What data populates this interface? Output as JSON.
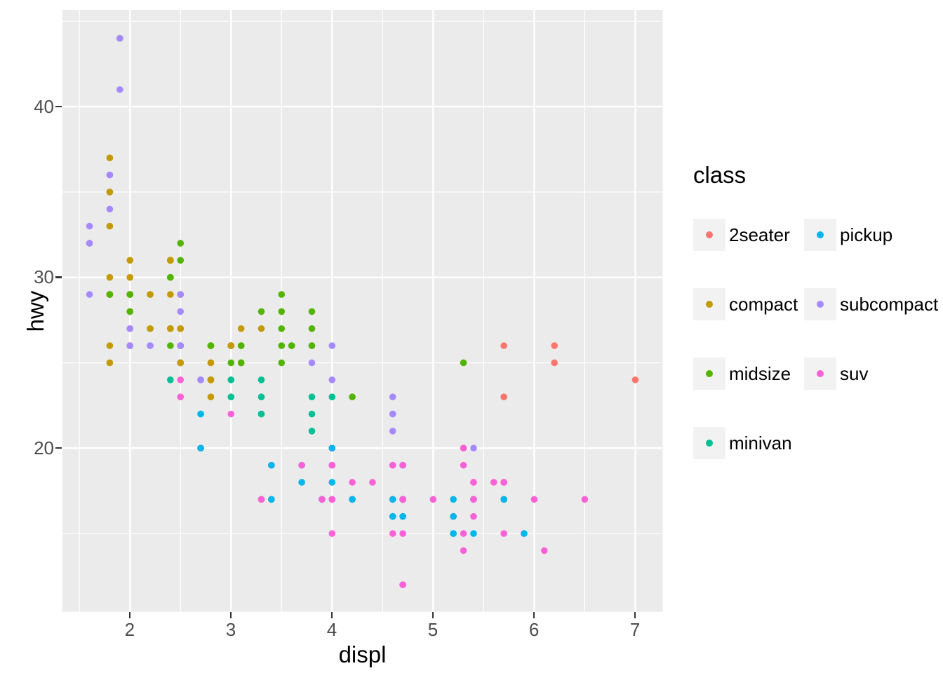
{
  "chart_data": {
    "type": "scatter",
    "title": "",
    "xlabel": "displ",
    "ylabel": "hwy",
    "xlim": [
      1.332,
      7.272
    ],
    "ylim": [
      10.42,
      45.67
    ],
    "x_major_ticks": [
      2,
      3,
      4,
      5,
      6,
      7
    ],
    "x_tick_labels": [
      "2",
      "3",
      "4",
      "5",
      "6",
      "7"
    ],
    "x_minor_ticks": [
      1.5,
      2.5,
      3.5,
      4.5,
      5.5,
      6.5
    ],
    "y_major_ticks": [
      20,
      30,
      40
    ],
    "y_tick_labels": [
      "20",
      "30",
      "40"
    ],
    "y_minor_ticks": [
      15,
      25,
      35,
      45
    ],
    "grid": true,
    "legend": {
      "title": "class",
      "position": "right",
      "ncol": 2
    },
    "series": [
      {
        "name": "2seater",
        "color": "#F8766D"
      },
      {
        "name": "compact",
        "color": "#C49A00"
      },
      {
        "name": "midsize",
        "color": "#53B400"
      },
      {
        "name": "minivan",
        "color": "#00C094"
      },
      {
        "name": "pickup",
        "color": "#00B6EB"
      },
      {
        "name": "subcompact",
        "color": "#A58AFF"
      },
      {
        "name": "suv",
        "color": "#FB61D7"
      }
    ],
    "point_columns": [
      "displ",
      "hwy",
      "series_index"
    ],
    "points": [
      [
        1.8,
        29,
        1
      ],
      [
        1.8,
        29,
        1
      ],
      [
        2.0,
        31,
        1
      ],
      [
        2.0,
        30,
        1
      ],
      [
        2.8,
        26,
        1
      ],
      [
        2.8,
        26,
        1
      ],
      [
        3.1,
        27,
        1
      ],
      [
        1.8,
        26,
        1
      ],
      [
        1.8,
        25,
        1
      ],
      [
        2.0,
        28,
        1
      ],
      [
        2.0,
        27,
        1
      ],
      [
        2.8,
        25,
        1
      ],
      [
        2.8,
        25,
        1
      ],
      [
        3.1,
        25,
        1
      ],
      [
        3.1,
        25,
        1
      ],
      [
        2.8,
        24,
        2
      ],
      [
        3.1,
        25,
        2
      ],
      [
        4.2,
        23,
        2
      ],
      [
        5.3,
        20,
        6
      ],
      [
        5.3,
        15,
        6
      ],
      [
        5.3,
        20,
        6
      ],
      [
        5.7,
        17,
        6
      ],
      [
        6.0,
        17,
        6
      ],
      [
        5.7,
        26,
        0
      ],
      [
        5.7,
        23,
        0
      ],
      [
        6.2,
        26,
        0
      ],
      [
        6.2,
        25,
        0
      ],
      [
        7.0,
        24,
        0
      ],
      [
        5.3,
        19,
        6
      ],
      [
        5.3,
        14,
        6
      ],
      [
        5.7,
        15,
        6
      ],
      [
        6.5,
        17,
        6
      ],
      [
        2.4,
        27,
        2
      ],
      [
        2.4,
        30,
        2
      ],
      [
        3.1,
        26,
        2
      ],
      [
        3.5,
        29,
        2
      ],
      [
        3.6,
        26,
        2
      ],
      [
        2.4,
        24,
        3
      ],
      [
        3.0,
        24,
        3
      ],
      [
        3.3,
        22,
        3
      ],
      [
        3.3,
        22,
        3
      ],
      [
        3.3,
        24,
        3
      ],
      [
        3.8,
        22,
        3
      ],
      [
        3.8,
        21,
        3
      ],
      [
        3.8,
        23,
        3
      ],
      [
        4.0,
        23,
        3
      ],
      [
        3.7,
        19,
        4
      ],
      [
        3.7,
        18,
        4
      ],
      [
        3.9,
        17,
        4
      ],
      [
        3.9,
        17,
        4
      ],
      [
        4.7,
        19,
        4
      ],
      [
        4.7,
        19,
        4
      ],
      [
        5.2,
        17,
        4
      ],
      [
        5.2,
        15,
        4
      ],
      [
        3.9,
        17,
        6
      ],
      [
        4.7,
        17,
        6
      ],
      [
        4.7,
        12,
        6
      ],
      [
        4.7,
        17,
        6
      ],
      [
        5.2,
        16,
        6
      ],
      [
        5.7,
        18,
        6
      ],
      [
        5.9,
        15,
        6
      ],
      [
        4.7,
        16,
        4
      ],
      [
        4.7,
        12,
        4
      ],
      [
        4.7,
        17,
        4
      ],
      [
        4.7,
        17,
        4
      ],
      [
        4.7,
        16,
        4
      ],
      [
        5.2,
        15,
        4
      ],
      [
        5.2,
        16,
        4
      ],
      [
        5.7,
        17,
        4
      ],
      [
        5.9,
        15,
        4
      ],
      [
        4.6,
        17,
        6
      ],
      [
        5.4,
        17,
        6
      ],
      [
        5.4,
        18,
        6
      ],
      [
        4.0,
        17,
        6
      ],
      [
        4.0,
        19,
        6
      ],
      [
        4.0,
        17,
        6
      ],
      [
        4.0,
        19,
        6
      ],
      [
        4.6,
        19,
        6
      ],
      [
        4.2,
        17,
        4
      ],
      [
        4.2,
        17,
        4
      ],
      [
        4.6,
        16,
        4
      ],
      [
        4.6,
        16,
        4
      ],
      [
        4.6,
        17,
        4
      ],
      [
        5.4,
        15,
        4
      ],
      [
        5.4,
        17,
        4
      ],
      [
        3.8,
        26,
        5
      ],
      [
        3.8,
        25,
        5
      ],
      [
        4.0,
        26,
        5
      ],
      [
        4.0,
        24,
        5
      ],
      [
        4.6,
        21,
        5
      ],
      [
        4.6,
        22,
        5
      ],
      [
        4.6,
        23,
        5
      ],
      [
        4.6,
        22,
        5
      ],
      [
        5.4,
        20,
        5
      ],
      [
        1.6,
        33,
        5
      ],
      [
        1.6,
        32,
        5
      ],
      [
        1.6,
        32,
        5
      ],
      [
        1.6,
        29,
        5
      ],
      [
        1.6,
        32,
        5
      ],
      [
        1.8,
        34,
        5
      ],
      [
        1.8,
        36,
        5
      ],
      [
        1.8,
        36,
        5
      ],
      [
        2.0,
        29,
        5
      ],
      [
        2.4,
        26,
        2
      ],
      [
        2.4,
        27,
        2
      ],
      [
        2.4,
        30,
        2
      ],
      [
        2.4,
        31,
        2
      ],
      [
        2.5,
        26,
        2
      ],
      [
        2.5,
        26,
        2
      ],
      [
        3.3,
        28,
        2
      ],
      [
        2.0,
        26,
        5
      ],
      [
        2.0,
        29,
        5
      ],
      [
        2.0,
        28,
        5
      ],
      [
        2.0,
        27,
        5
      ],
      [
        2.7,
        24,
        5
      ],
      [
        2.7,
        24,
        5
      ],
      [
        3.0,
        22,
        6
      ],
      [
        3.7,
        19,
        6
      ],
      [
        4.0,
        20,
        6
      ],
      [
        4.7,
        17,
        6
      ],
      [
        4.7,
        12,
        6
      ],
      [
        4.7,
        19,
        6
      ],
      [
        5.7,
        18,
        6
      ],
      [
        6.1,
        14,
        6
      ],
      [
        4.0,
        15,
        6
      ],
      [
        4.2,
        18,
        6
      ],
      [
        4.4,
        18,
        6
      ],
      [
        4.6,
        15,
        6
      ],
      [
        5.4,
        17,
        6
      ],
      [
        5.4,
        16,
        6
      ],
      [
        5.4,
        18,
        6
      ],
      [
        4.0,
        17,
        6
      ],
      [
        4.0,
        19,
        6
      ],
      [
        4.6,
        19,
        6
      ],
      [
        5.0,
        17,
        6
      ],
      [
        2.4,
        29,
        1
      ],
      [
        2.4,
        27,
        1
      ],
      [
        2.5,
        31,
        2
      ],
      [
        2.5,
        32,
        2
      ],
      [
        3.5,
        27,
        2
      ],
      [
        3.5,
        26,
        2
      ],
      [
        3.0,
        26,
        2
      ],
      [
        3.0,
        25,
        2
      ],
      [
        3.5,
        25,
        2
      ],
      [
        3.3,
        17,
        6
      ],
      [
        3.3,
        17,
        6
      ],
      [
        4.0,
        20,
        6
      ],
      [
        5.6,
        18,
        6
      ],
      [
        3.1,
        26,
        2
      ],
      [
        3.8,
        26,
        2
      ],
      [
        3.8,
        27,
        2
      ],
      [
        3.8,
        28,
        2
      ],
      [
        5.3,
        25,
        2
      ],
      [
        2.5,
        25,
        6
      ],
      [
        2.5,
        24,
        6
      ],
      [
        2.5,
        27,
        6
      ],
      [
        2.5,
        25,
        6
      ],
      [
        2.5,
        26,
        6
      ],
      [
        2.5,
        23,
        6
      ],
      [
        2.2,
        26,
        5
      ],
      [
        2.2,
        26,
        5
      ],
      [
        2.5,
        26,
        5
      ],
      [
        2.5,
        26,
        5
      ],
      [
        2.5,
        25,
        1
      ],
      [
        2.5,
        27,
        1
      ],
      [
        2.5,
        25,
        1
      ],
      [
        2.5,
        27,
        1
      ],
      [
        2.7,
        20,
        6
      ],
      [
        2.7,
        20,
        6
      ],
      [
        3.4,
        19,
        6
      ],
      [
        3.4,
        17,
        6
      ],
      [
        4.0,
        20,
        6
      ],
      [
        4.7,
        17,
        6
      ],
      [
        2.2,
        29,
        2
      ],
      [
        2.2,
        27,
        2
      ],
      [
        2.4,
        31,
        2
      ],
      [
        2.4,
        31,
        2
      ],
      [
        3.0,
        26,
        2
      ],
      [
        3.0,
        26,
        2
      ],
      [
        3.5,
        28,
        2
      ],
      [
        2.2,
        27,
        1
      ],
      [
        2.2,
        29,
        1
      ],
      [
        2.4,
        31,
        1
      ],
      [
        2.4,
        31,
        1
      ],
      [
        3.0,
        26,
        1
      ],
      [
        3.0,
        26,
        1
      ],
      [
        3.3,
        27,
        1
      ],
      [
        1.8,
        30,
        1
      ],
      [
        1.8,
        33,
        1
      ],
      [
        1.8,
        35,
        1
      ],
      [
        1.8,
        37,
        1
      ],
      [
        1.8,
        35,
        1
      ],
      [
        4.7,
        15,
        6
      ],
      [
        5.7,
        18,
        6
      ],
      [
        3.0,
        23,
        3
      ],
      [
        3.3,
        23,
        3
      ],
      [
        2.7,
        22,
        4
      ],
      [
        2.7,
        20,
        4
      ],
      [
        2.7,
        22,
        4
      ],
      [
        3.4,
        17,
        4
      ],
      [
        3.4,
        19,
        4
      ],
      [
        4.0,
        18,
        4
      ],
      [
        4.0,
        20,
        4
      ],
      [
        2.0,
        29,
        1
      ],
      [
        2.0,
        26,
        1
      ],
      [
        2.0,
        29,
        1
      ],
      [
        2.0,
        29,
        1
      ],
      [
        2.8,
        24,
        1
      ],
      [
        1.9,
        44,
        1
      ],
      [
        2.0,
        29,
        1
      ],
      [
        2.0,
        26,
        1
      ],
      [
        2.0,
        29,
        1
      ],
      [
        2.0,
        29,
        1
      ],
      [
        2.5,
        29,
        1
      ],
      [
        2.5,
        29,
        1
      ],
      [
        2.8,
        23,
        1
      ],
      [
        2.8,
        24,
        1
      ],
      [
        1.9,
        44,
        5
      ],
      [
        1.9,
        41,
        5
      ],
      [
        2.0,
        29,
        5
      ],
      [
        2.0,
        26,
        5
      ],
      [
        2.5,
        28,
        5
      ],
      [
        2.5,
        29,
        5
      ],
      [
        1.8,
        29,
        2
      ],
      [
        1.8,
        29,
        2
      ],
      [
        2.0,
        28,
        2
      ],
      [
        2.0,
        29,
        2
      ],
      [
        2.8,
        26,
        2
      ],
      [
        2.8,
        26,
        2
      ],
      [
        3.6,
        26,
        2
      ]
    ],
    "style": {
      "background": "#FFFFFF",
      "panel_bg": "#EBEBEB",
      "grid_major": "#FFFFFF",
      "grid_minor": "#FFFFFF",
      "tick_color": "#333333",
      "tick_label_color": "#4D4D4D",
      "title_color": "#000000",
      "legend_key_bg": "#F2F2F2"
    }
  }
}
